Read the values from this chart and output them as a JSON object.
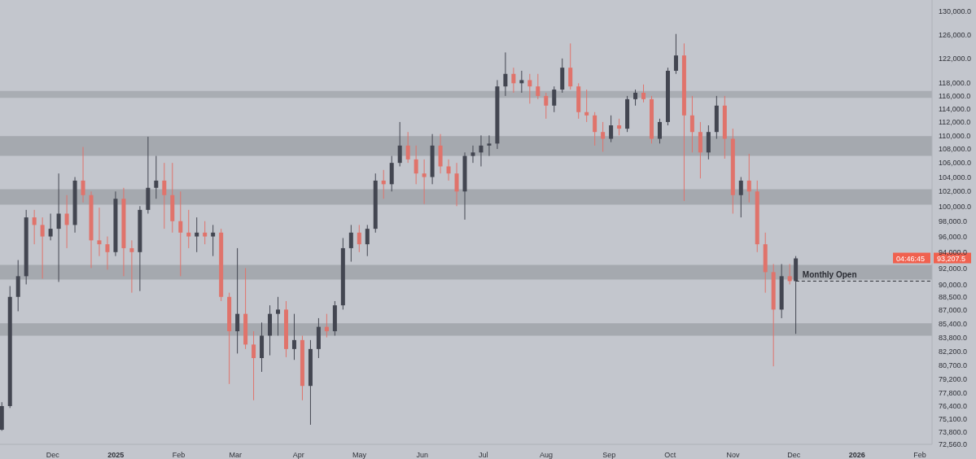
{
  "chart_data": {
    "type": "candlestick",
    "x": [
      "2024-11-06",
      "2024-11-10",
      "2024-11-14",
      "2024-11-18",
      "2024-11-22",
      "2024-11-26",
      "2024-11-30",
      "2024-12-04",
      "2024-12-08",
      "2024-12-12",
      "2024-12-16",
      "2024-12-20",
      "2024-12-24",
      "2024-12-28",
      "2025-01-01",
      "2025-01-05",
      "2025-01-09",
      "2025-01-13",
      "2025-01-17",
      "2025-01-21",
      "2025-01-25",
      "2025-01-29",
      "2025-02-02",
      "2025-02-06",
      "2025-02-10",
      "2025-02-14",
      "2025-02-18",
      "2025-02-22",
      "2025-02-26",
      "2025-03-02",
      "2025-03-06",
      "2025-03-10",
      "2025-03-14",
      "2025-03-18",
      "2025-03-22",
      "2025-03-26",
      "2025-03-30",
      "2025-04-03",
      "2025-04-07",
      "2025-04-11",
      "2025-04-15",
      "2025-04-19",
      "2025-04-23",
      "2025-04-27",
      "2025-05-01",
      "2025-05-05",
      "2025-05-09",
      "2025-05-13",
      "2025-05-17",
      "2025-05-21",
      "2025-05-25",
      "2025-05-29",
      "2025-06-02",
      "2025-06-06",
      "2025-06-10",
      "2025-06-14",
      "2025-06-18",
      "2025-06-22",
      "2025-06-26",
      "2025-06-30",
      "2025-07-04",
      "2025-07-08",
      "2025-07-12",
      "2025-07-16",
      "2025-07-20",
      "2025-07-24",
      "2025-07-28",
      "2025-08-01",
      "2025-08-05",
      "2025-08-09",
      "2025-08-13",
      "2025-08-17",
      "2025-08-21",
      "2025-08-25",
      "2025-08-29",
      "2025-09-02",
      "2025-09-06",
      "2025-09-10",
      "2025-09-14",
      "2025-09-18",
      "2025-09-22",
      "2025-09-26",
      "2025-09-30",
      "2025-10-04",
      "2025-10-08",
      "2025-10-12",
      "2025-10-16",
      "2025-10-20",
      "2025-10-24",
      "2025-10-28",
      "2025-11-01",
      "2025-11-05",
      "2025-11-09",
      "2025-11-13",
      "2025-11-17",
      "2025-11-21",
      "2025-11-25",
      "2025-11-29",
      "2025-12-02"
    ],
    "ohlc": [
      [
        74000,
        76800,
        73900,
        76400
      ],
      [
        76400,
        89800,
        76200,
        88500
      ],
      [
        88500,
        93000,
        86800,
        91000
      ],
      [
        91000,
        99500,
        90000,
        98500
      ],
      [
        98500,
        99500,
        95000,
        97500
      ],
      [
        97500,
        98500,
        90700,
        96000
      ],
      [
        96000,
        99000,
        95500,
        97000
      ],
      [
        97000,
        104500,
        90300,
        99000
      ],
      [
        99000,
        101500,
        94500,
        97500
      ],
      [
        97500,
        104000,
        96500,
        103500
      ],
      [
        103500,
        108300,
        100500,
        101500
      ],
      [
        101500,
        102000,
        92000,
        95500
      ],
      [
        95500,
        99800,
        93500,
        95000
      ],
      [
        95000,
        96000,
        91800,
        94000
      ],
      [
        94000,
        102000,
        93500,
        101000
      ],
      [
        101000,
        102500,
        91000,
        94500
      ],
      [
        94500,
        95500,
        89000,
        94000
      ],
      [
        94000,
        100000,
        89200,
        99500
      ],
      [
        99500,
        109800,
        99000,
        102500
      ],
      [
        102500,
        107000,
        101000,
        103500
      ],
      [
        103500,
        106000,
        97000,
        101500
      ],
      [
        101500,
        106000,
        96500,
        98000
      ],
      [
        98000,
        102000,
        91000,
        96500
      ],
      [
        96500,
        99500,
        94500,
        96000
      ],
      [
        96000,
        98500,
        94000,
        96500
      ],
      [
        96500,
        98000,
        95000,
        96000
      ],
      [
        96000,
        97500,
        93500,
        96500
      ],
      [
        96500,
        97000,
        88000,
        88500
      ],
      [
        88500,
        89000,
        78700,
        84500
      ],
      [
        84500,
        94500,
        82000,
        86500
      ],
      [
        86500,
        92000,
        82500,
        83000
      ],
      [
        83000,
        84500,
        77000,
        81500
      ],
      [
        81500,
        85500,
        80000,
        84000
      ],
      [
        84000,
        87500,
        81800,
        86500
      ],
      [
        86500,
        88500,
        84000,
        87000
      ],
      [
        87000,
        88000,
        81600,
        82500
      ],
      [
        82500,
        86500,
        81300,
        83500
      ],
      [
        83500,
        84000,
        77000,
        78500
      ],
      [
        78500,
        83500,
        74500,
        82500
      ],
      [
        82500,
        86000,
        81500,
        85000
      ],
      [
        85000,
        86500,
        83800,
        84500
      ],
      [
        84500,
        88000,
        84000,
        87500
      ],
      [
        87500,
        95800,
        87000,
        94500
      ],
      [
        94500,
        97500,
        92800,
        96500
      ],
      [
        96500,
        97500,
        94000,
        95000
      ],
      [
        95000,
        97500,
        93500,
        97000
      ],
      [
        97000,
        104500,
        96500,
        103500
      ],
      [
        103500,
        105000,
        101000,
        103000
      ],
      [
        103000,
        107000,
        102000,
        106000
      ],
      [
        106000,
        112000,
        105500,
        108500
      ],
      [
        108500,
        110500,
        106000,
        106500
      ],
      [
        106500,
        108500,
        103000,
        104500
      ],
      [
        104500,
        106500,
        100300,
        104000
      ],
      [
        104000,
        110200,
        103000,
        108500
      ],
      [
        108500,
        110200,
        104500,
        105500
      ],
      [
        105500,
        106500,
        103500,
        104500
      ],
      [
        104500,
        106000,
        100000,
        102000
      ],
      [
        102000,
        107500,
        98200,
        107000
      ],
      [
        107000,
        108500,
        106000,
        107500
      ],
      [
        107500,
        110000,
        105500,
        108500
      ],
      [
        108500,
        110000,
        107000,
        108800
      ],
      [
        108800,
        118500,
        108000,
        117500
      ],
      [
        117500,
        123000,
        116000,
        119500
      ],
      [
        119500,
        120500,
        116500,
        118000
      ],
      [
        118000,
        120000,
        116500,
        118500
      ],
      [
        118500,
        119500,
        114800,
        117500
      ],
      [
        117500,
        119500,
        115500,
        116000
      ],
      [
        116000,
        116500,
        112500,
        114500
      ],
      [
        114500,
        117500,
        113500,
        117000
      ],
      [
        117000,
        122000,
        116500,
        120500
      ],
      [
        120500,
        124500,
        117000,
        117500
      ],
      [
        117500,
        118000,
        112500,
        113500
      ],
      [
        113500,
        117000,
        112000,
        113000
      ],
      [
        113000,
        113500,
        108500,
        110500
      ],
      [
        110500,
        112000,
        107600,
        109500
      ],
      [
        109500,
        113000,
        109000,
        111500
      ],
      [
        111500,
        112500,
        110000,
        111000
      ],
      [
        111000,
        116000,
        110500,
        115500
      ],
      [
        115500,
        117000,
        114500,
        116500
      ],
      [
        116500,
        117800,
        115000,
        115500
      ],
      [
        115500,
        116000,
        108800,
        109500
      ],
      [
        109500,
        112500,
        108800,
        112000
      ],
      [
        112000,
        120500,
        111500,
        120000
      ],
      [
        120000,
        126100,
        119500,
        122500
      ],
      [
        122500,
        124500,
        100700,
        113000
      ],
      [
        113000,
        116000,
        107500,
        110500
      ],
      [
        110500,
        112000,
        103800,
        107500
      ],
      [
        107500,
        111500,
        106500,
        110500
      ],
      [
        110500,
        116000,
        109500,
        114500
      ],
      [
        114500,
        116000,
        106600,
        109500
      ],
      [
        109500,
        111000,
        99000,
        101500
      ],
      [
        101500,
        104000,
        98500,
        103500
      ],
      [
        103500,
        107300,
        100500,
        102000
      ],
      [
        102000,
        103500,
        94000,
        95000
      ],
      [
        95000,
        96500,
        89000,
        91500
      ],
      [
        91500,
        92500,
        80600,
        87000
      ],
      [
        87000,
        92500,
        86000,
        91000
      ],
      [
        91000,
        92500,
        90000,
        90400
      ],
      [
        90400,
        93500,
        84200,
        93207.5
      ]
    ],
    "colors": [
      "#434651",
      "#434651",
      "#434651",
      "#434651",
      "#e0736b",
      "#e0736b",
      "#434651",
      "#434651",
      "#e0736b",
      "#434651",
      "#e0736b",
      "#e0736b",
      "#e0736b",
      "#e0736b",
      "#434651",
      "#e0736b",
      "#e0736b",
      "#434651",
      "#434651",
      "#434651",
      "#e0736b",
      "#e0736b",
      "#e0736b",
      "#e0736b",
      "#434651",
      "#e0736b",
      "#434651",
      "#e0736b",
      "#e0736b",
      "#434651",
      "#e0736b",
      "#e0736b",
      "#434651",
      "#434651",
      "#434651",
      "#e0736b",
      "#434651",
      "#e0736b",
      "#434651",
      "#434651",
      "#e0736b",
      "#434651",
      "#434651",
      "#434651",
      "#e0736b",
      "#434651",
      "#434651",
      "#e0736b",
      "#434651",
      "#434651",
      "#e0736b",
      "#e0736b",
      "#e0736b",
      "#434651",
      "#e0736b",
      "#e0736b",
      "#e0736b",
      "#434651",
      "#434651",
      "#434651",
      "#434651",
      "#434651",
      "#434651",
      "#e0736b",
      "#434651",
      "#e0736b",
      "#e0736b",
      "#e0736b",
      "#434651",
      "#434651",
      "#e0736b",
      "#e0736b",
      "#e0736b",
      "#e0736b",
      "#e0736b",
      "#434651",
      "#e0736b",
      "#434651",
      "#434651",
      "#e0736b",
      "#e0736b",
      "#434651",
      "#434651",
      "#434651",
      "#e0736b",
      "#e0736b",
      "#e0736b",
      "#434651",
      "#434651",
      "#e0736b",
      "#e0736b",
      "#434651",
      "#e0736b",
      "#e0736b",
      "#e0736b",
      "#e0736b",
      "#434651",
      "#e0736b",
      "#434651"
    ],
    "xlim": [
      "2024-11-05",
      "2026-02-07"
    ],
    "xticks": [
      {
        "value": "2024-12-01",
        "label": "Dec"
      },
      {
        "value": "2025-01-01",
        "label": "2025"
      },
      {
        "value": "2025-02-01",
        "label": "Feb"
      },
      {
        "value": "2025-03-01",
        "label": "Mar"
      },
      {
        "value": "2025-04-01",
        "label": "Apr"
      },
      {
        "value": "2025-05-01",
        "label": "May"
      },
      {
        "value": "2025-06-01",
        "label": "Jun"
      },
      {
        "value": "2025-07-01",
        "label": "Jul"
      },
      {
        "value": "2025-08-01",
        "label": "Aug"
      },
      {
        "value": "2025-09-01",
        "label": "Sep"
      },
      {
        "value": "2025-10-01",
        "label": "Oct"
      },
      {
        "value": "2025-11-01",
        "label": "Nov"
      },
      {
        "value": "2025-12-01",
        "label": "Dec"
      },
      {
        "value": "2026-01-01",
        "label": "2026"
      },
      {
        "value": "2026-02-01",
        "label": "Feb"
      }
    ],
    "ylim": [
      72560,
      132000
    ],
    "log": true,
    "yticks": [
      {
        "value": 130000,
        "label": "130,000.0"
      },
      {
        "value": 126000,
        "label": "126,000.0"
      },
      {
        "value": 122000,
        "label": "122,000.0"
      },
      {
        "value": 118000,
        "label": "118,000.0"
      },
      {
        "value": 116000,
        "label": "116,000.0"
      },
      {
        "value": 114000,
        "label": "114,000.0"
      },
      {
        "value": 112000,
        "label": "112,000.0"
      },
      {
        "value": 110000,
        "label": "110,000.0"
      },
      {
        "value": 108000,
        "label": "108,000.0"
      },
      {
        "value": 106000,
        "label": "106,000.0"
      },
      {
        "value": 104000,
        "label": "104,000.0"
      },
      {
        "value": 102000,
        "label": "102,000.0"
      },
      {
        "value": 100000,
        "label": "100,000.0"
      },
      {
        "value": 98000,
        "label": "98,000.0"
      },
      {
        "value": 96000,
        "label": "96,000.0"
      },
      {
        "value": 94000,
        "label": "94,000.0"
      },
      {
        "value": 92000,
        "label": "92,000.0"
      },
      {
        "value": 90000,
        "label": "90,000.0"
      },
      {
        "value": 88500,
        "label": "88,500.0"
      },
      {
        "value": 87000,
        "label": "87,000.0"
      },
      {
        "value": 85400,
        "label": "85,400.0"
      },
      {
        "value": 83800,
        "label": "83,800.0"
      },
      {
        "value": 82200,
        "label": "82,200.0"
      },
      {
        "value": 80700,
        "label": "80,700.0"
      },
      {
        "value": 79200,
        "label": "79,200.0"
      },
      {
        "value": 77800,
        "label": "77,800.0"
      },
      {
        "value": 76400,
        "label": "76,400.0"
      },
      {
        "value": 75100,
        "label": "75,100.0"
      },
      {
        "value": 73800,
        "label": "73,800.0"
      },
      {
        "value": 72560,
        "label": "72,560.0"
      }
    ],
    "bands": [
      {
        "axis": "y",
        "from": 107000,
        "to": 109900,
        "color": "#9ea1a8"
      },
      {
        "axis": "y",
        "from": 100200,
        "to": 102300,
        "color": "#9ea1a8"
      },
      {
        "axis": "y",
        "from": 90600,
        "to": 92400,
        "color": "#9ea1a8"
      },
      {
        "axis": "y",
        "from": 84000,
        "to": 85400,
        "color": "#9ea1a8"
      },
      {
        "axis": "y",
        "from": 115700,
        "to": 116800,
        "color": "#a3a6ad"
      }
    ],
    "ref_lines": [
      {
        "axis": "y",
        "value": 90400,
        "label": "Monthly Open",
        "line_style": "dashed",
        "color": "#2a2c33"
      }
    ],
    "annotations": [
      "93,207.5",
      "04:46:45"
    ]
  }
}
